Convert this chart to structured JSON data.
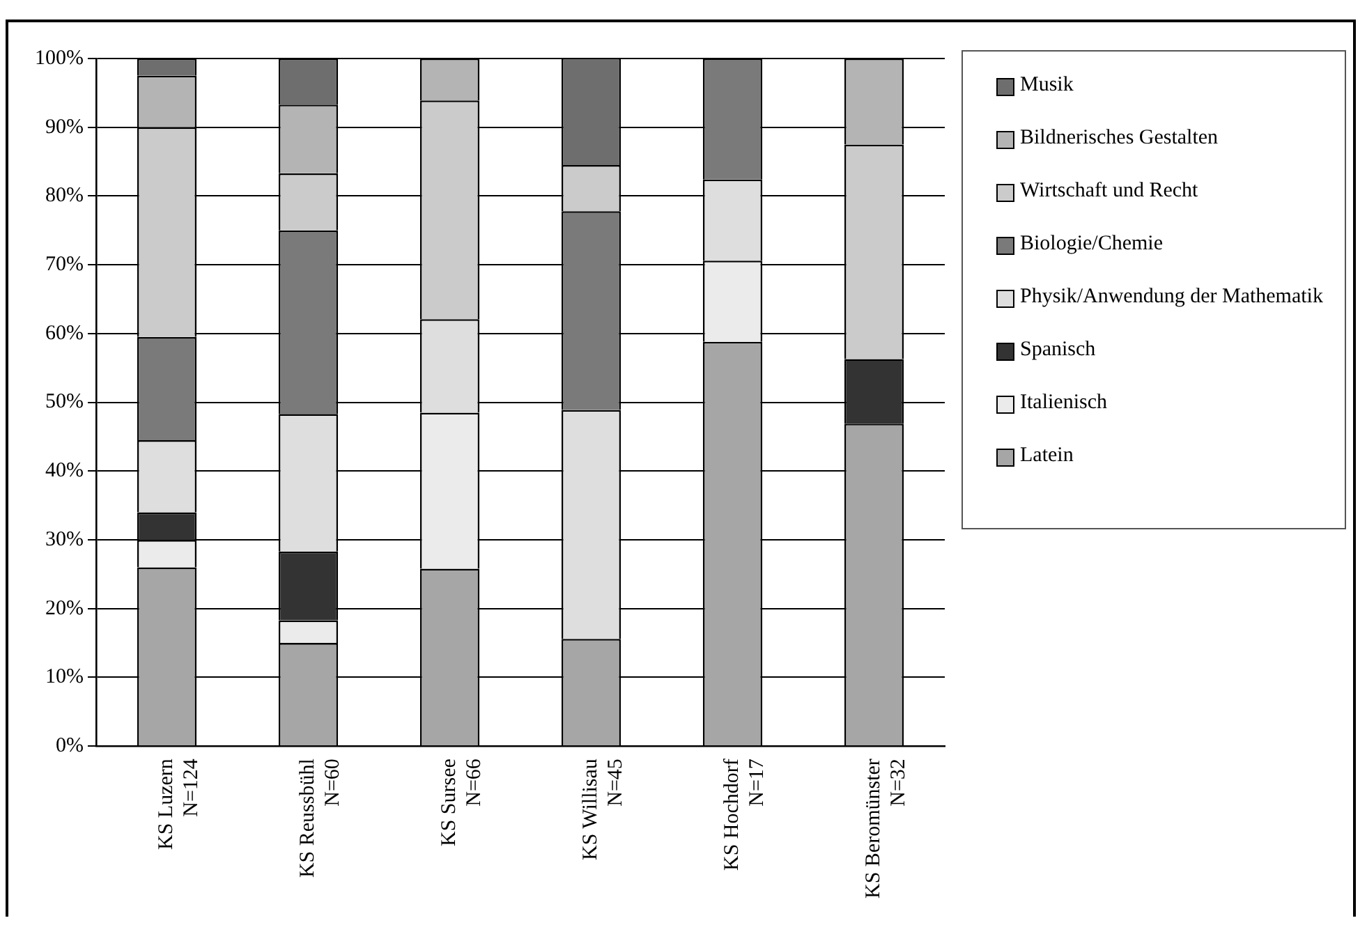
{
  "chart_data": {
    "type": "bar",
    "stacked": true,
    "categories": [
      "KS Luzern N=124",
      "KS Reussbühl N=60",
      "KS Sursee N=66",
      "KS Willisau N=45",
      "KS Hochdorf N=17",
      "KS Beromünster N=32"
    ],
    "series": [
      {
        "name": "Latein",
        "color": "#a6a6a6",
        "values": [
          26,
          15,
          25.8,
          15.6,
          58.8,
          46.9
        ]
      },
      {
        "name": "Italienisch",
        "color": "#ebebeb",
        "values": [
          4,
          3.3,
          22.7,
          null,
          11.8,
          null
        ]
      },
      {
        "name": "Spanisch",
        "color": "#333333",
        "values": [
          4,
          10,
          null,
          null,
          null,
          9.4
        ]
      },
      {
        "name": "Physik/Anwendung der Mathematik",
        "color": "#dedede",
        "values": [
          10.5,
          20,
          13.6,
          33.3,
          11.8,
          null
        ]
      },
      {
        "name": "Biologie/Chemie",
        "color": "#7a7a7a",
        "values": [
          15,
          26.7,
          null,
          28.9,
          17.6,
          null
        ]
      },
      {
        "name": "Wirtschaft und Recht",
        "color": "#cbcbcb",
        "values": [
          30.5,
          8.3,
          31.8,
          6.7,
          null,
          31.2
        ]
      },
      {
        "name": "Bildnerisches Gestalten",
        "color": "#b4b4b4",
        "values": [
          7.5,
          10,
          6.1,
          null,
          null,
          12.5
        ]
      },
      {
        "name": "Musik",
        "color": "#6e6e6e",
        "values": [
          2.5,
          6.7,
          null,
          15.6,
          null,
          null
        ]
      }
    ],
    "ylim": [
      0,
      100
    ],
    "yticks": [
      {
        "value": 0,
        "label": "0%"
      },
      {
        "value": 10,
        "label": "10%"
      },
      {
        "value": 20,
        "label": "20%"
      },
      {
        "value": 30,
        "label": "30%"
      },
      {
        "value": 40,
        "label": "40%"
      },
      {
        "value": 50,
        "label": "50%"
      },
      {
        "value": 60,
        "label": "60%"
      },
      {
        "value": 70,
        "label": "70%"
      },
      {
        "value": 80,
        "label": "80%"
      },
      {
        "value": 90,
        "label": "90%"
      },
      {
        "value": 100,
        "label": "100%"
      }
    ],
    "grid": "y",
    "legend": "right"
  }
}
